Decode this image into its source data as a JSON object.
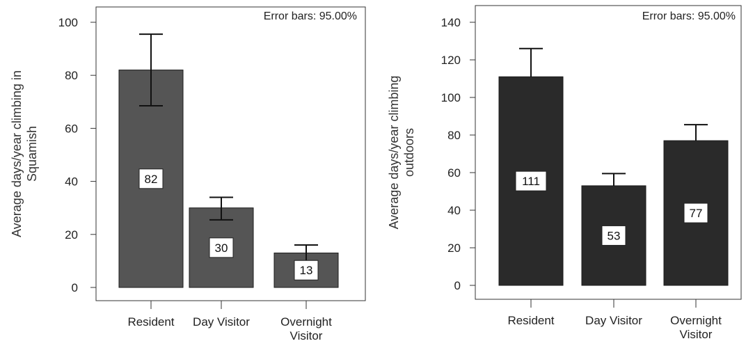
{
  "chart_data": [
    {
      "type": "bar",
      "annotation": "Error bars: 95.00%",
      "ylabel": "Average days/year climbing in Squamish",
      "ylabel_lines": [
        "Average days/year climbing in",
        "Squamish"
      ],
      "categories": [
        "Resident",
        "Day Visitor",
        "Overnight Visitor"
      ],
      "category_lines": [
        [
          "Resident"
        ],
        [
          "Day Visitor"
        ],
        [
          "Overnight",
          "Visitor"
        ]
      ],
      "values": [
        82,
        30,
        13
      ],
      "value_labels": [
        "82",
        "30",
        "13"
      ],
      "error_low": [
        68.5,
        25.5,
        10
      ],
      "error_high": [
        95.5,
        34,
        16
      ],
      "ylim": [
        0,
        100
      ],
      "yticks": [
        0,
        20,
        40,
        60,
        80,
        100
      ],
      "ytick_labels": [
        "0",
        "20",
        "40",
        "60",
        "80",
        "100"
      ],
      "bar_color": "#555555",
      "grid": false
    },
    {
      "type": "bar",
      "annotation": "Error bars: 95.00%",
      "ylabel": "Average days/year climbing outdoors",
      "ylabel_lines": [
        "Average days/year climbing",
        "outdoors"
      ],
      "categories": [
        "Resident",
        "Day Visitor",
        "Overnight Visitor"
      ],
      "category_lines": [
        [
          "Resident"
        ],
        [
          "Day Visitor"
        ],
        [
          "Overnight",
          "Visitor"
        ]
      ],
      "values": [
        111,
        53,
        77
      ],
      "value_labels": [
        "111",
        "53",
        "77"
      ],
      "error_low": [
        111,
        53,
        77
      ],
      "error_high": [
        126,
        59.5,
        85.5
      ],
      "ylim": [
        0,
        140
      ],
      "yticks": [
        0,
        20,
        40,
        60,
        80,
        100,
        120,
        140
      ],
      "ytick_labels": [
        "0",
        "20",
        "40",
        "60",
        "80",
        "100",
        "120",
        "140"
      ],
      "bar_color": "#2a2a2a",
      "grid": false
    }
  ]
}
